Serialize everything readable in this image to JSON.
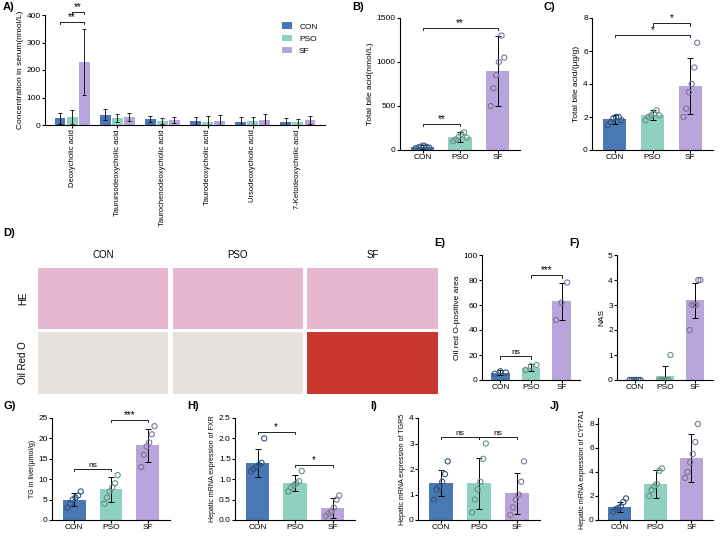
{
  "chart_data": [
    {
      "label": "A)",
      "type": "grouped_bar",
      "categories": [
        "Deoxycholic acid",
        "Taurursodeoxycholic acid",
        "Taurochenodeoxycholic acid",
        "Taurodeoxycholic acid",
        "Ursodeoxycholic acid",
        "7-Ketodeoxycholic acid"
      ],
      "series": [
        {
          "name": "CON",
          "color": "#4a78b5",
          "values": [
            25,
            38,
            22,
            15,
            12,
            12
          ],
          "errors": [
            20,
            20,
            12,
            15,
            18,
            12
          ]
        },
        {
          "name": "PSO",
          "color": "#8fd1c1",
          "values": [
            28,
            25,
            15,
            12,
            15,
            10
          ],
          "errors": [
            25,
            15,
            10,
            20,
            15,
            12
          ]
        },
        {
          "name": "SF",
          "color": "#b7a5db",
          "values": [
            230,
            30,
            18,
            15,
            18,
            18
          ],
          "errors": [
            120,
            15,
            10,
            20,
            22,
            15
          ]
        }
      ],
      "ylabel": "Concentration in serum(nmol/L)",
      "ylim": [
        0,
        400
      ],
      "yticks": [
        0,
        100,
        200,
        300,
        400
      ],
      "legend": "upper right",
      "annotations": [
        {
          "text": "**",
          "category": "Deoxycholic acid",
          "from": "CON",
          "to": "SF"
        },
        {
          "text": "**",
          "category": "Deoxycholic acid",
          "from": "PSO",
          "to": "SF"
        }
      ]
    },
    {
      "label": "B)",
      "type": "bar",
      "categories": [
        "CON",
        "PSO",
        "SF"
      ],
      "colors": [
        "#4a78b5",
        "#8fd1c1",
        "#b7a5db"
      ],
      "values": [
        35,
        150,
        900
      ],
      "errors": [
        20,
        60,
        400
      ],
      "points": [
        [
          20,
          30,
          40,
          50,
          35,
          25
        ],
        [
          100,
          120,
          150,
          180,
          200,
          140
        ],
        [
          500,
          700,
          850,
          1000,
          1300,
          1050
        ]
      ],
      "ylabel": "Total bile acid(nmol/L)",
      "ylim": [
        0,
        1500
      ],
      "yticks": [
        0,
        500,
        1000,
        1500
      ],
      "annotations": [
        {
          "text": "**",
          "from": "CON",
          "to": "PSO"
        },
        {
          "text": "**",
          "from": "CON",
          "to": "SF"
        }
      ]
    },
    {
      "label": "C)",
      "type": "bar",
      "categories": [
        "CON",
        "PSO",
        "SF"
      ],
      "colors": [
        "#4a78b5",
        "#8fd1c1",
        "#b7a5db"
      ],
      "values": [
        1.85,
        2.1,
        3.9
      ],
      "errors": [
        0.3,
        0.3,
        1.7
      ],
      "points": [
        [
          1.5,
          1.7,
          1.9,
          2.0,
          2.0,
          1.8
        ],
        [
          1.8,
          2.0,
          2.1,
          2.2,
          2.4,
          2.1
        ],
        [
          2.0,
          2.5,
          3.5,
          4.0,
          5.0,
          6.5
        ]
      ],
      "ylabel": "Total bile acid/(μg/g)",
      "ylim": [
        0,
        8
      ],
      "yticks": [
        0,
        2,
        4,
        6,
        8
      ],
      "annotations": [
        {
          "text": "*",
          "from": "CON",
          "to": "SF"
        },
        {
          "text": "*",
          "from": "PSO",
          "to": "SF"
        }
      ]
    },
    {
      "label": "D)",
      "type": "image_grid",
      "rows": [
        "HE",
        "Oil Red O"
      ],
      "columns": [
        "CON",
        "PSO",
        "SF"
      ]
    },
    {
      "label": "E)",
      "type": "bar",
      "categories": [
        "CON",
        "PSO",
        "SF"
      ],
      "colors": [
        "#4a78b5",
        "#8fd1c1",
        "#b7a5db"
      ],
      "values": [
        6,
        10,
        63
      ],
      "errors": [
        2,
        3,
        15
      ],
      "points": [
        [
          5,
          7,
          6
        ],
        [
          8,
          11,
          12
        ],
        [
          48,
          62,
          78
        ]
      ],
      "ylabel": "Oil red O-positive area",
      "ylim": [
        0,
        100
      ],
      "yticks": [
        0,
        20,
        40,
        60,
        80,
        100
      ],
      "annotations": [
        {
          "text": "ns",
          "from": "CON",
          "to": "PSO"
        },
        {
          "text": "***",
          "from": "PSO",
          "to": "SF"
        }
      ]
    },
    {
      "label": "F)",
      "type": "bar",
      "categories": [
        "CON",
        "PSO",
        "SF"
      ],
      "colors": [
        "#4a78b5",
        "#8fd1c1",
        "#b7a5db"
      ],
      "values": [
        0,
        0.17,
        3.2
      ],
      "errors": [
        0,
        0.4,
        0.7
      ],
      "points": [
        [
          0,
          0,
          0,
          0,
          0,
          0
        ],
        [
          0,
          0,
          0,
          0,
          0,
          1
        ],
        [
          2,
          3,
          3,
          3,
          4,
          4
        ]
      ],
      "ylabel": "NAS",
      "ylim": [
        0,
        5
      ],
      "yticks": [
        0,
        1,
        2,
        3,
        4,
        5
      ]
    },
    {
      "label": "G)",
      "type": "bar",
      "categories": [
        "CON",
        "PSO",
        "SF"
      ],
      "colors": [
        "#4a78b5",
        "#8fd1c1",
        "#b7a5db"
      ],
      "values": [
        5,
        7.5,
        18.3
      ],
      "errors": [
        1.5,
        3,
        4
      ],
      "points": [
        [
          3,
          4,
          5,
          5.5,
          6,
          7
        ],
        [
          4,
          5.5,
          7,
          8,
          9,
          11
        ],
        [
          13,
          16,
          18,
          19,
          21,
          23
        ]
      ],
      "ylabel": "TG in liver(μmol/g)",
      "ylim": [
        0,
        25
      ],
      "yticks": [
        0,
        5,
        10,
        15,
        20,
        25
      ],
      "annotations": [
        {
          "text": "ns",
          "from": "CON",
          "to": "PSO"
        },
        {
          "text": "***",
          "from": "PSO",
          "to": "SF"
        }
      ]
    },
    {
      "label": "H)",
      "type": "bar",
      "categories": [
        "CON",
        "PSO",
        "SF"
      ],
      "colors": [
        "#4a78b5",
        "#8fd1c1",
        "#b7a5db"
      ],
      "values": [
        1.4,
        0.9,
        0.3
      ],
      "errors": [
        0.35,
        0.2,
        0.25
      ],
      "points": [
        [
          1.2,
          1.25,
          1.3,
          1.35,
          1.4,
          2.0
        ],
        [
          0.7,
          0.8,
          0.85,
          0.9,
          0.95,
          1.2
        ],
        [
          0.1,
          0.15,
          0.2,
          0.3,
          0.5,
          0.6
        ]
      ],
      "ylabel": "Hepatic mRNA expression of FXR",
      "ylim": [
        0,
        2.5
      ],
      "yticks": [
        {
          "value": 0,
          "label": "0.0"
        },
        0.5,
        {
          "value": 1,
          "label": "1.0"
        },
        1.5,
        {
          "value": 2,
          "label": "2.0"
        },
        2.5
      ],
      "annotations": [
        {
          "text": "*",
          "from": "CON",
          "to": "PSO"
        },
        {
          "text": "*",
          "from": "PSO",
          "to": "SF"
        }
      ]
    },
    {
      "label": "I)",
      "type": "bar",
      "categories": [
        "CON",
        "PSO",
        "SF"
      ],
      "colors": [
        "#4a78b5",
        "#8fd1c1",
        "#b7a5db"
      ],
      "values": [
        1.45,
        1.45,
        1.05
      ],
      "errors": [
        0.5,
        1.0,
        0.8
      ],
      "points": [
        [
          0.8,
          1.2,
          1.3,
          1.5,
          1.8,
          2.3
        ],
        [
          0.3,
          0.8,
          1.2,
          1.5,
          2.4,
          3.0
        ],
        [
          0.2,
          0.5,
          0.8,
          1.0,
          1.5,
          2.3
        ]
      ],
      "ylabel": "Hepatic mRNA expression of TGR5",
      "ylim": [
        0,
        4
      ],
      "yticks": [
        0,
        1,
        2,
        3,
        4
      ],
      "annotations": [
        {
          "text": "ns",
          "from": "CON",
          "to": "PSO"
        },
        {
          "text": "ns",
          "from": "PSO",
          "to": "SF"
        }
      ]
    },
    {
      "label": "J)",
      "type": "bar",
      "categories": [
        "CON",
        "PSO",
        "SF"
      ],
      "colors": [
        "#4a78b5",
        "#8fd1c1",
        "#b7a5db"
      ],
      "values": [
        1.1,
        3.0,
        5.2
      ],
      "errors": [
        0.4,
        1.2,
        2.0
      ],
      "points": [
        [
          0.7,
          0.9,
          1.0,
          1.1,
          1.5,
          1.8
        ],
        [
          2.0,
          2.5,
          2.8,
          3.0,
          4.1,
          4.3
        ],
        [
          3.5,
          4.0,
          4.8,
          5.5,
          6.5,
          8.0
        ]
      ],
      "ylabel": "Hepatic mRNA expression of CYP7A1",
      "ylim": [
        0,
        8.5
      ],
      "yticks": [
        0,
        2,
        4,
        6,
        8
      ]
    }
  ]
}
